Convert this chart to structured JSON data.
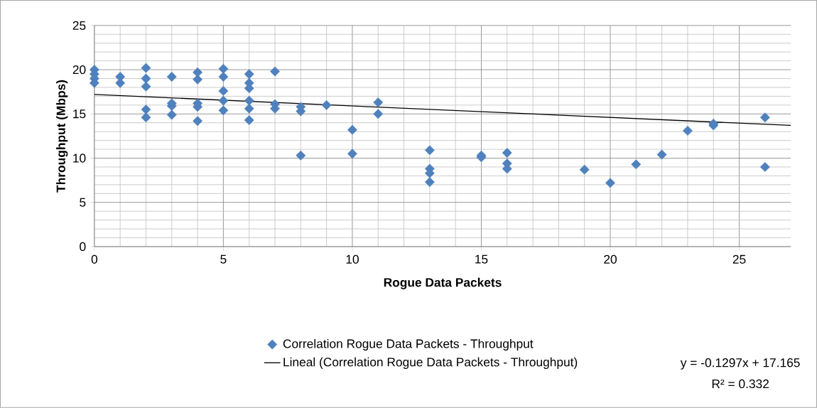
{
  "chart_data": {
    "type": "scatter",
    "xlabel": "Rogue Data Packets",
    "ylabel": "Throughput (Mbps)",
    "xlim": [
      0,
      27
    ],
    "ylim": [
      0,
      25
    ],
    "xticks": [
      0,
      5,
      10,
      15,
      20,
      25
    ],
    "yticks": [
      0,
      5,
      10,
      15,
      20,
      25
    ],
    "grid": true,
    "legend": "bottom",
    "annotations": [
      "y = -0.1297x + 17.165",
      "R² = 0.332"
    ],
    "series": [
      {
        "name": "Correlation Rogue Data Packets - Throughput",
        "marker": "diamond",
        "color": "#4f81bd",
        "x": [
          0,
          0,
          0,
          0,
          1,
          1,
          2,
          2,
          2,
          2,
          2,
          3,
          3,
          3,
          3,
          4,
          4,
          4,
          4,
          4,
          5,
          5,
          5,
          5,
          5,
          6,
          6,
          6,
          6,
          6,
          6,
          7,
          7,
          7,
          8,
          8,
          8,
          9,
          10,
          10,
          11,
          11,
          13,
          13,
          13,
          13,
          15,
          15,
          16,
          16,
          16,
          19,
          20,
          21,
          22,
          23,
          24,
          24,
          26,
          26
        ],
        "values": [
          20.0,
          19.5,
          19.0,
          18.5,
          19.2,
          18.5,
          20.2,
          19.0,
          18.1,
          15.5,
          14.6,
          19.2,
          16.2,
          15.9,
          14.9,
          19.7,
          18.9,
          16.2,
          15.8,
          14.2,
          20.1,
          19.2,
          17.6,
          16.5,
          15.4,
          19.5,
          18.5,
          17.9,
          16.5,
          15.6,
          14.3,
          19.8,
          16.1,
          15.6,
          15.8,
          15.3,
          10.3,
          16.0,
          13.2,
          10.5,
          16.3,
          15.0,
          10.9,
          8.8,
          8.3,
          7.3,
          10.3,
          10.1,
          10.6,
          9.4,
          8.8,
          8.7,
          7.2,
          9.3,
          10.4,
          13.1,
          13.9,
          13.7,
          14.6,
          9.0
        ]
      },
      {
        "name": "Lineal (Correlation Rogue Data Packets - Throughput)",
        "type": "line",
        "color": "#000000",
        "line_style": "solid",
        "x": [
          0,
          27
        ],
        "values": [
          17.2,
          13.7
        ]
      }
    ]
  }
}
